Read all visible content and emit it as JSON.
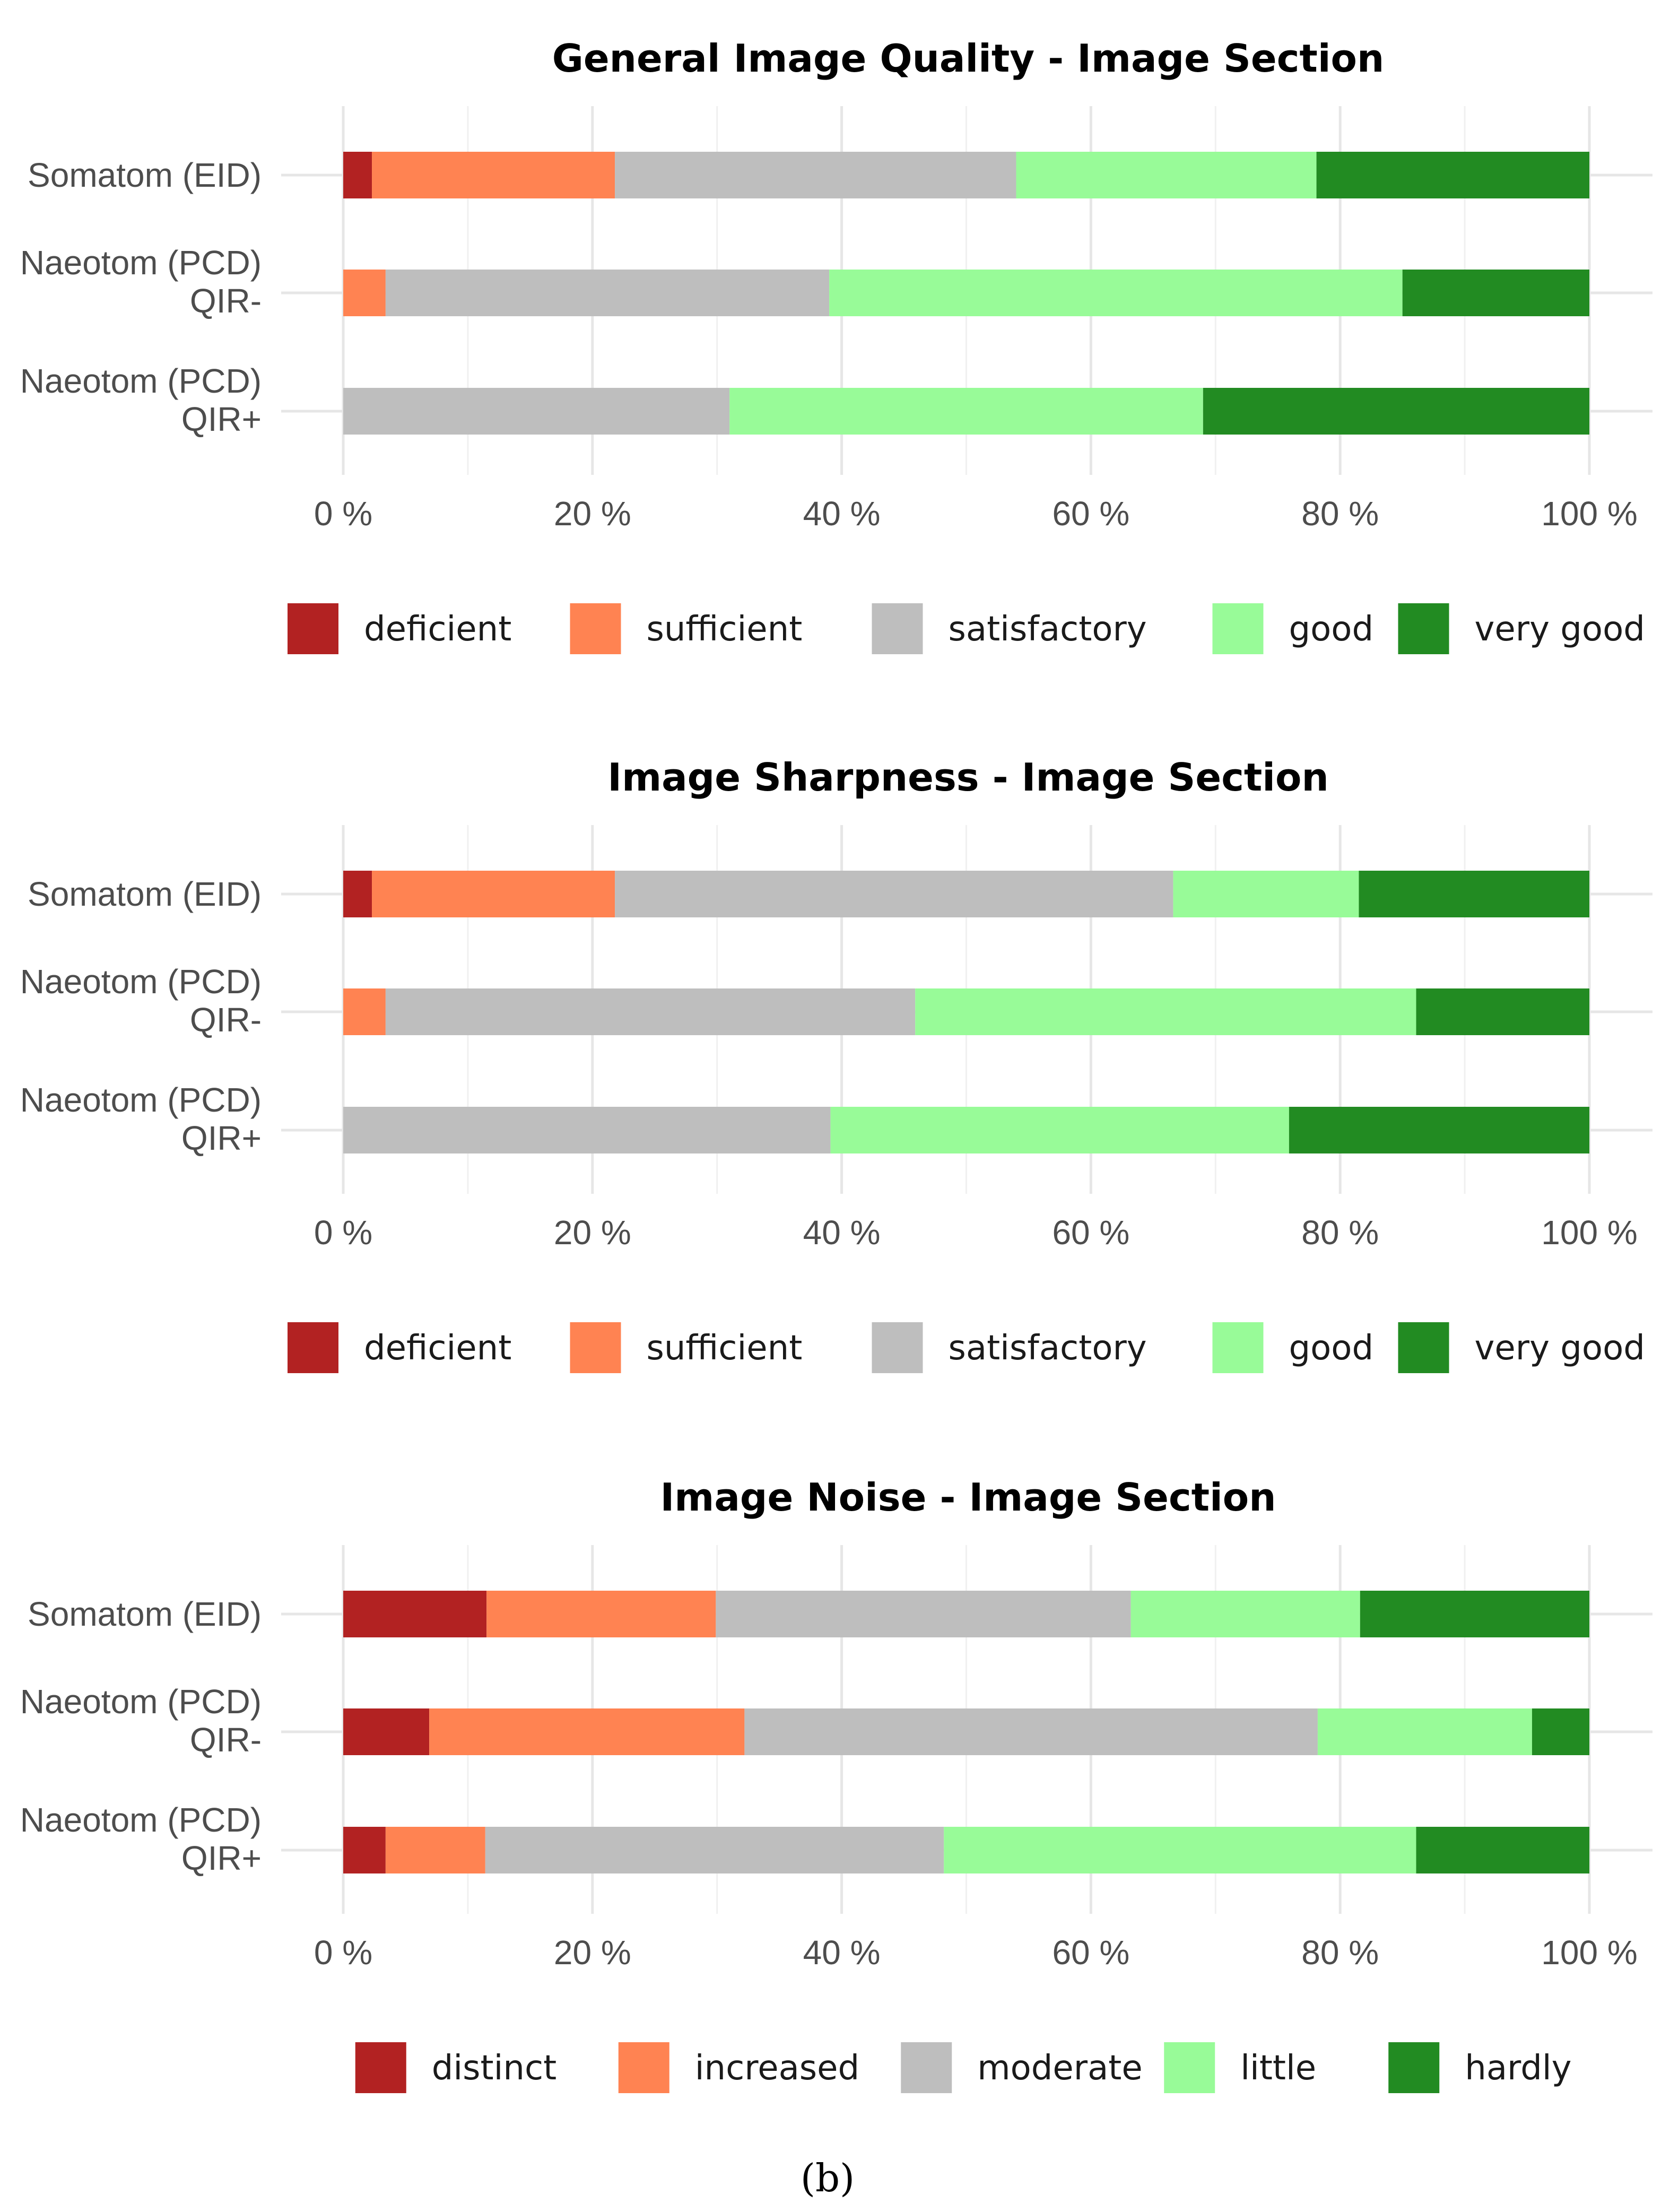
{
  "chart_data": [
    {
      "type": "bar",
      "orientation": "horizontal",
      "stacked": true,
      "title": "General Image Quality - Image Section",
      "categories": [
        "Somatom (EID)",
        "Naeotom (PCD)\nQIR-",
        "Naeotom (PCD)\nQIR+"
      ],
      "xlim": [
        0,
        100
      ],
      "x_ticks": [
        "0 %",
        "20 %",
        "40 %",
        "60 %",
        "80 %",
        "100 %"
      ],
      "legend_position": "bottom",
      "series": [
        {
          "name": "deficient",
          "color": "#b22222",
          "values": [
            2.3,
            0,
            0
          ]
        },
        {
          "name": "sufficient",
          "color": "#ff8352",
          "values": [
            19.5,
            3.4,
            0
          ]
        },
        {
          "name": "satisfactory",
          "color": "#bebebe",
          "values": [
            32.2,
            35.6,
            31.0
          ]
        },
        {
          "name": "good",
          "color": "#98fb98",
          "values": [
            24.1,
            46.0,
            38.0
          ]
        },
        {
          "name": "very good",
          "color": "#228b22",
          "values": [
            21.9,
            15.0,
            31.0
          ]
        }
      ]
    },
    {
      "type": "bar",
      "orientation": "horizontal",
      "stacked": true,
      "title": "Image Sharpness - Image Section",
      "categories": [
        "Somatom (EID)",
        "Naeotom (PCD)\nQIR-",
        "Naeotom (PCD)\nQIR+"
      ],
      "xlim": [
        0,
        100
      ],
      "x_ticks": [
        "0 %",
        "20 %",
        "40 %",
        "60 %",
        "80 %",
        "100 %"
      ],
      "legend_position": "bottom",
      "series": [
        {
          "name": "deficient",
          "color": "#b22222",
          "values": [
            2.3,
            0,
            0
          ]
        },
        {
          "name": "sufficient",
          "color": "#ff8352",
          "values": [
            19.5,
            3.4,
            0
          ]
        },
        {
          "name": "satisfactory",
          "color": "#bebebe",
          "values": [
            44.8,
            42.5,
            39.1
          ]
        },
        {
          "name": "good",
          "color": "#98fb98",
          "values": [
            14.9,
            40.2,
            36.8
          ]
        },
        {
          "name": "very good",
          "color": "#228b22",
          "values": [
            18.5,
            13.9,
            24.1
          ]
        }
      ]
    },
    {
      "type": "bar",
      "orientation": "horizontal",
      "stacked": true,
      "title": "Image Noise - Image Section",
      "categories": [
        "Somatom (EID)",
        "Naeotom (PCD)\nQIR-",
        "Naeotom (PCD)\nQIR+"
      ],
      "xlim": [
        0,
        100
      ],
      "x_ticks": [
        "0 %",
        "20 %",
        "40 %",
        "60 %",
        "80 %",
        "100 %"
      ],
      "legend_position": "bottom",
      "series": [
        {
          "name": "distinct",
          "color": "#b22222",
          "values": [
            11.5,
            6.9,
            3.4
          ]
        },
        {
          "name": "increased",
          "color": "#ff8352",
          "values": [
            18.4,
            25.3,
            8.0
          ]
        },
        {
          "name": "moderate",
          "color": "#bebebe",
          "values": [
            33.3,
            46.0,
            36.8
          ]
        },
        {
          "name": "little",
          "color": "#98fb98",
          "values": [
            18.4,
            17.2,
            37.9
          ]
        },
        {
          "name": "hardly",
          "color": "#228b22",
          "values": [
            18.4,
            4.6,
            13.9
          ]
        }
      ]
    }
  ],
  "caption": "(b)"
}
